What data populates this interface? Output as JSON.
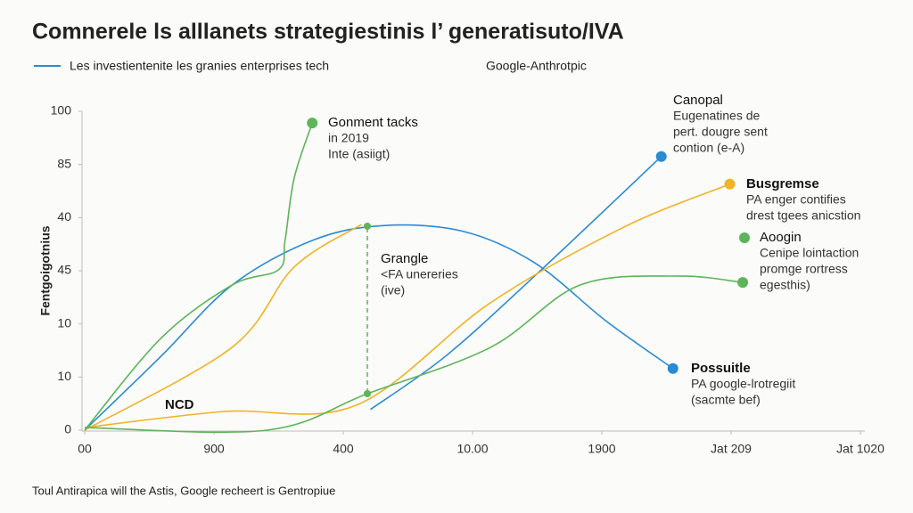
{
  "chart_data": {
    "type": "line",
    "title": "Comnerele ls alllanets strategiestinis l’ generatisuto/IVA",
    "legend_text": "Les investientenite les granies enterprises tech",
    "legend_text_2": "Google-Anthrotpic",
    "y_label": "Fentgoigotnius",
    "footer": "Toul Antirapica will the Astis, Google recheert is Gentropiue",
    "xlim": [
      0,
      6
    ],
    "ylim": [
      0,
      6
    ],
    "xticks": [
      {
        "value": 0,
        "label": "00"
      },
      {
        "value": 1,
        "label": "900"
      },
      {
        "value": 2,
        "label": "400"
      },
      {
        "value": 3,
        "label": "10.00"
      },
      {
        "value": 4,
        "label": "1900"
      },
      {
        "value": 5,
        "label": "Jat 209"
      },
      {
        "value": 6,
        "label": "Jat 1020"
      }
    ],
    "yticks": [
      {
        "value": 0,
        "label": "0"
      },
      {
        "value": 1,
        "label": "10"
      },
      {
        "value": 2,
        "label": "10"
      },
      {
        "value": 3,
        "label": "45"
      },
      {
        "value": 4,
        "label": "40"
      },
      {
        "value": 5,
        "label": "85"
      },
      {
        "value": 6,
        "label": "100"
      }
    ],
    "series": [
      {
        "name": "Possuitle",
        "color": "#2a8ad4",
        "x": [
          0,
          0.59,
          1.14,
          1.76,
          2.31,
          2.93,
          3.48,
          4.03,
          4.55
        ],
        "values": [
          0,
          1.39,
          2.73,
          3.57,
          3.85,
          3.74,
          3.15,
          2.06,
          1.16
        ]
      },
      {
        "name": "Canopal",
        "color": "#2a8ad4",
        "x": [
          2.21,
          2.79,
          3.48,
          4.46
        ],
        "values": [
          0.39,
          1.39,
          2.9,
          5.15
        ]
      },
      {
        "name": "Busgremse",
        "color": "#f0b323",
        "x": [
          0,
          1.07,
          2.1,
          3.14,
          4.17,
          4.99
        ],
        "values": [
          0.05,
          0.35,
          0.47,
          2.4,
          3.82,
          4.63
        ]
      },
      {
        "color": "#f0b323",
        "x": [
          0,
          1.14,
          1.62,
          2.14
        ],
        "values": [
          0,
          1.56,
          3.07,
          3.87
        ]
      },
      {
        "name": "Gonment tacks",
        "color": "#5db45a",
        "x": [
          0,
          0.59,
          1.14,
          1.5,
          1.55,
          1.62,
          1.76
        ],
        "values": [
          0,
          1.73,
          2.73,
          3.02,
          3.57,
          4.74,
          5.78
        ]
      },
      {
        "name": "Aoogin",
        "color": "#5db45a",
        "x": [
          0,
          1.41,
          2.19,
          3.14,
          3.83,
          4.59,
          5.09
        ],
        "values": [
          0.05,
          0,
          0.69,
          1.56,
          2.73,
          2.9,
          2.78
        ]
      }
    ],
    "annotations": [
      {
        "title": "Gonment tacks",
        "lines": [
          "in 2019",
          "Inte (asiigt)"
        ]
      },
      {
        "title": "Canopal",
        "lines": [
          "Eugenatines de",
          "pert. dougre sent",
          "contion (e-A)"
        ]
      },
      {
        "title": "Busgremse",
        "lines": [
          "PA enger contifies",
          "drest tgees anicstion"
        ]
      },
      {
        "title": "Aoogin",
        "lines": [
          "Cenipe lointaction",
          "promge rortress",
          "egesthis)"
        ]
      },
      {
        "title": "Grangle",
        "lines": [
          "<FA unereries",
          "(ive)"
        ]
      },
      {
        "title": "Possuitle",
        "lines": [
          "PA google-lrotregiit",
          "(sacmte bef)"
        ]
      },
      {
        "title": "NCD",
        "lines": []
      }
    ]
  }
}
